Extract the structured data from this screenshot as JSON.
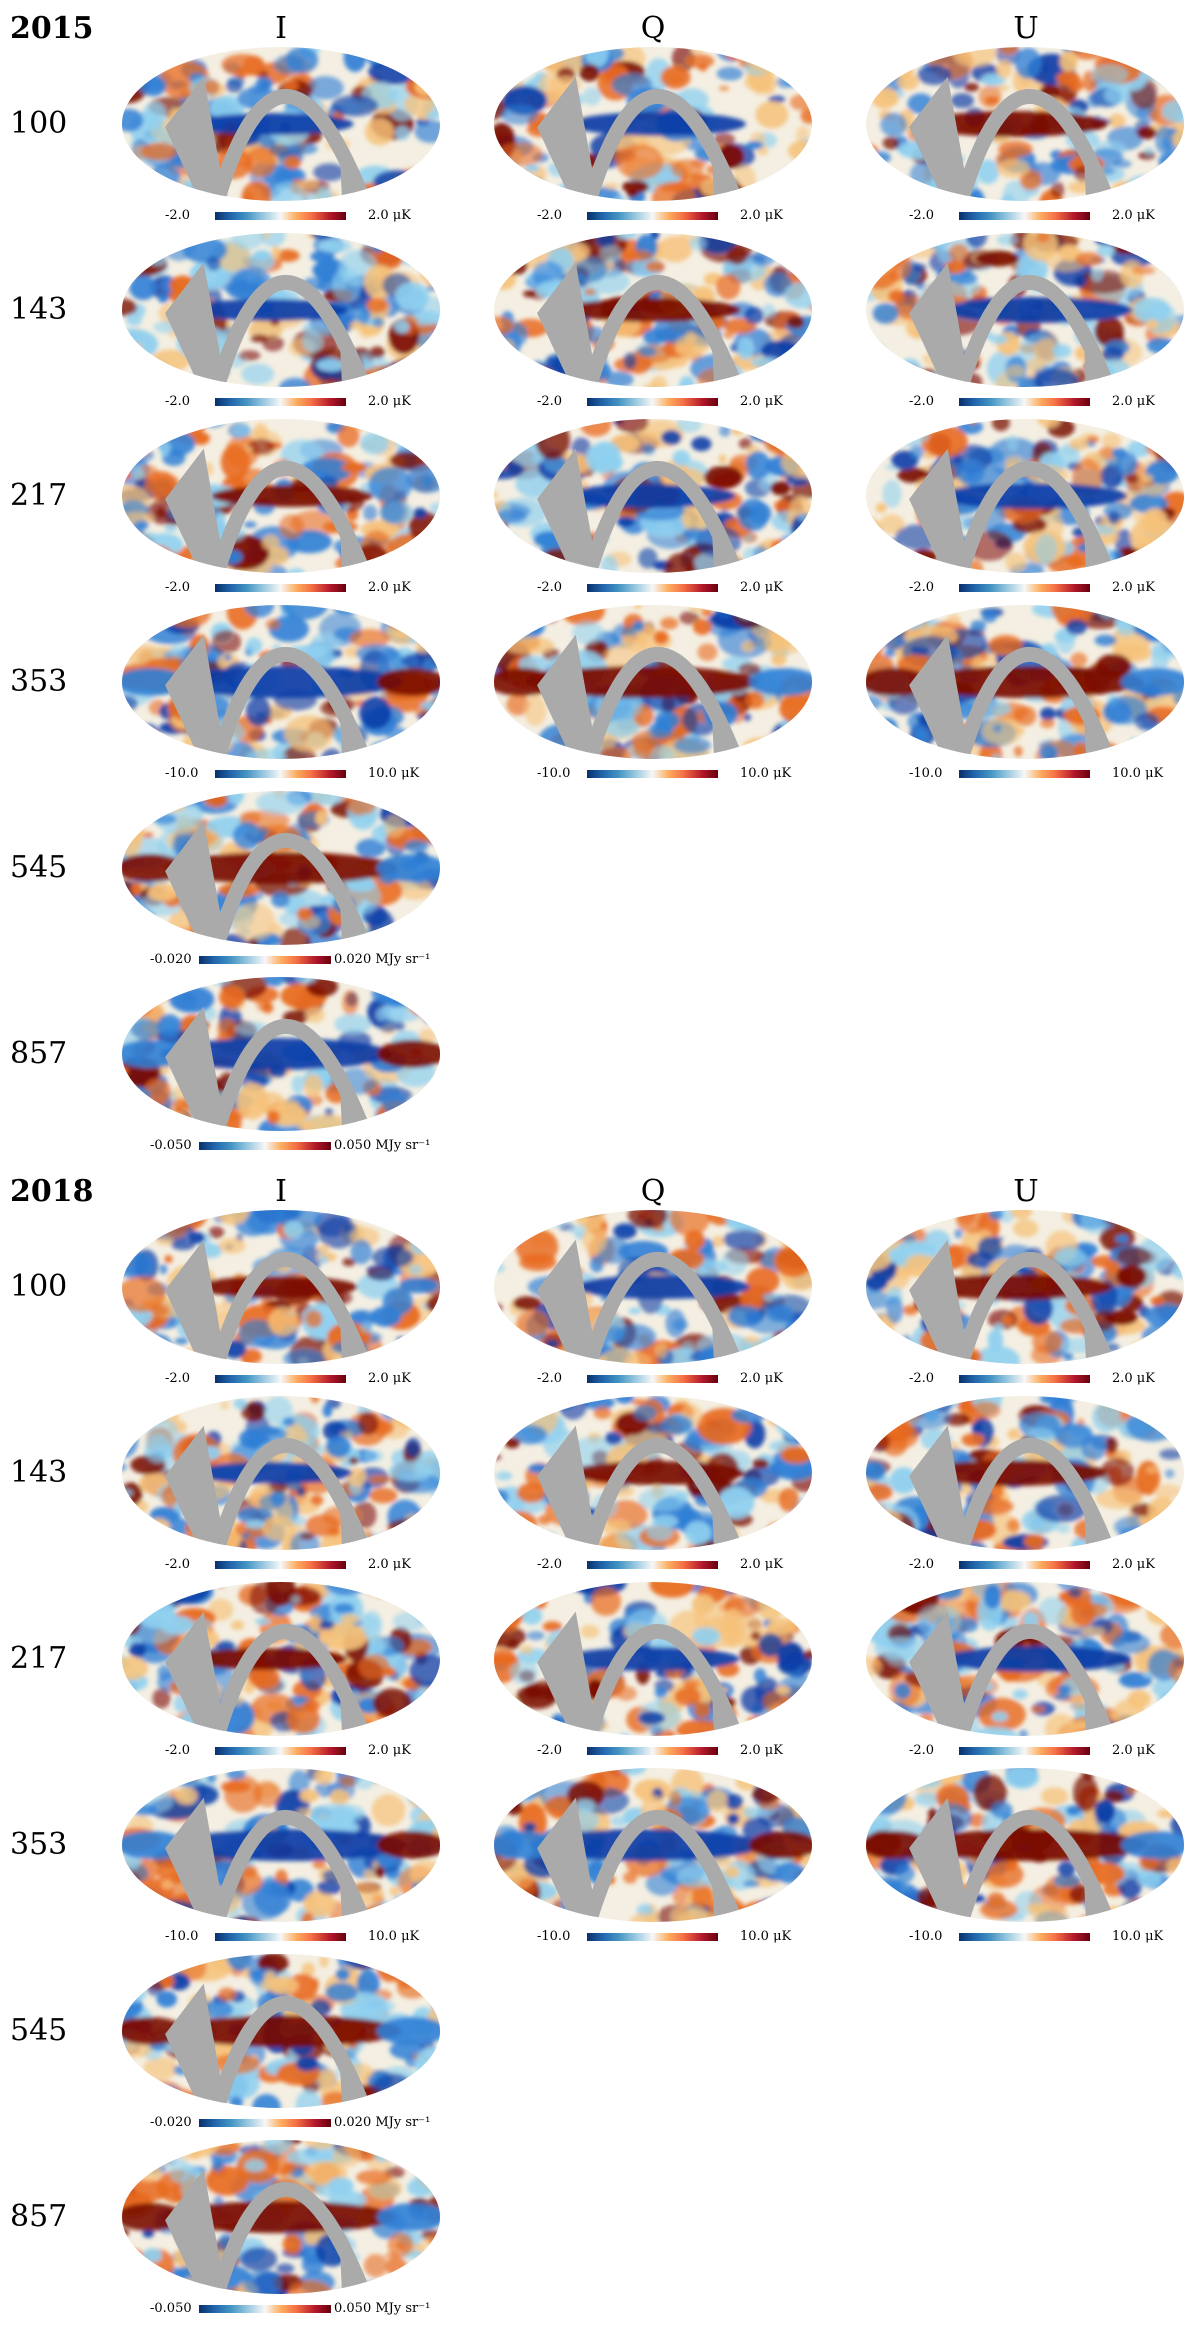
{
  "blocks": [
    {
      "year": "2015",
      "columns": [
        "I",
        "Q",
        "U"
      ],
      "rows": [
        {
          "freq": "100",
          "maps": 3,
          "scale": {
            "min": "-2.0",
            "max": "2.0 μK"
          }
        },
        {
          "freq": "143",
          "maps": 3,
          "scale": {
            "min": "-2.0",
            "max": "2.0 μK"
          }
        },
        {
          "freq": "217",
          "maps": 3,
          "scale": {
            "min": "-2.0",
            "max": "2.0 μK"
          }
        },
        {
          "freq": "353",
          "maps": 3,
          "scale": {
            "min": "-10.0",
            "max": "10.0 μK"
          }
        },
        {
          "freq": "545",
          "maps": 1,
          "scale": {
            "min": "-0.020",
            "max": "0.020 MJy sr⁻¹"
          }
        },
        {
          "freq": "857",
          "maps": 1,
          "scale": {
            "min": "-0.050",
            "max": "0.050 MJy sr⁻¹"
          }
        }
      ]
    },
    {
      "year": "2018",
      "columns": [
        "I",
        "Q",
        "U"
      ],
      "rows": [
        {
          "freq": "100",
          "maps": 3,
          "scale": {
            "min": "-2.0",
            "max": "2.0 μK"
          }
        },
        {
          "freq": "143",
          "maps": 3,
          "scale": {
            "min": "-2.0",
            "max": "2.0 μK"
          }
        },
        {
          "freq": "217",
          "maps": 3,
          "scale": {
            "min": "-2.0",
            "max": "2.0 μK"
          }
        },
        {
          "freq": "353",
          "maps": 3,
          "scale": {
            "min": "-10.0",
            "max": "10.0 μK"
          }
        },
        {
          "freq": "545",
          "maps": 1,
          "scale": {
            "min": "-0.020",
            "max": "0.020 MJy sr⁻¹"
          }
        },
        {
          "freq": "857",
          "maps": 1,
          "scale": {
            "min": "-0.050",
            "max": "0.050 MJy sr⁻¹"
          }
        }
      ]
    }
  ],
  "colors": {
    "mask": "#aaaaaa",
    "cold_deep": "#0b3ea8",
    "cold": "#2f7fd6",
    "cool": "#8fd0f0",
    "neutral": "#f4efe2",
    "warm": "#f6c27a",
    "hot": "#e86a1f",
    "hot_deep": "#7a0a00"
  }
}
